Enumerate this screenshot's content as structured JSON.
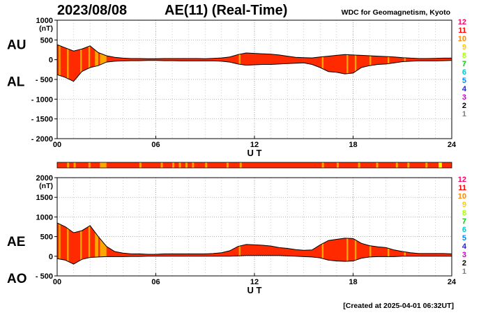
{
  "header": {
    "date": "2023/08/08",
    "title": "AE(11) (Real-Time)",
    "source": "WDC for Geomagnetism, Kyoto"
  },
  "footer": {
    "created": "[Created at 2025-04-01 06:32UT]"
  },
  "colors": {
    "fill_red": "#ff2a00",
    "fill_orange": "#ffa500",
    "fill_yellow": "#ffff00",
    "grid": "#999999",
    "station_count_colors": [
      "#c8c8c8",
      "#7f7f7f",
      "#000000",
      "#cc00cc",
      "#2222cc",
      "#0088ff",
      "#00cccc",
      "#00cc00",
      "#aaff00",
      "#ffcc00",
      "#ff8800",
      "#ff0000",
      "#ff0066"
    ]
  },
  "chart_data": [
    {
      "type": "area",
      "panel": "AU/AL",
      "series": [
        {
          "name": "AU"
        },
        {
          "name": "AL"
        }
      ],
      "units": "(nT)",
      "ylim": [
        -2000,
        1000
      ],
      "yticks": [
        1000,
        500,
        0,
        -500,
        -1000,
        -1500,
        -2000
      ],
      "ytick_labels": [
        "1000",
        "500",
        "0",
        "- 500",
        "- 1000",
        "- 1500",
        "- 2000"
      ],
      "xlim": [
        0,
        24
      ],
      "xticks": [
        0,
        6,
        12,
        18,
        24
      ],
      "xtick_labels": [
        "00",
        "06",
        "12",
        "18",
        "24"
      ],
      "xlabel": "U T",
      "grid": true,
      "hours": [
        0,
        0.5,
        1,
        1.5,
        2,
        2.5,
        3,
        3.5,
        4,
        4.5,
        5,
        5.5,
        6,
        6.5,
        7,
        7.5,
        8,
        8.5,
        9,
        9.5,
        10,
        10.5,
        11,
        11.5,
        12,
        12.5,
        13,
        13.5,
        14,
        14.5,
        15,
        15.5,
        16,
        16.5,
        17,
        17.5,
        18,
        18.5,
        19,
        19.5,
        20,
        20.5,
        21,
        21.5,
        22,
        22.5,
        23,
        23.5,
        24
      ],
      "upper": [
        380,
        300,
        220,
        270,
        350,
        180,
        100,
        60,
        40,
        30,
        30,
        25,
        25,
        30,
        30,
        30,
        30,
        30,
        25,
        35,
        45,
        70,
        130,
        170,
        160,
        150,
        140,
        120,
        90,
        60,
        50,
        45,
        70,
        90,
        110,
        130,
        120,
        110,
        100,
        90,
        80,
        70,
        50,
        40,
        30,
        30,
        35,
        40,
        40
      ],
      "lower": [
        -380,
        -450,
        -550,
        -300,
        -200,
        -150,
        -60,
        -40,
        -30,
        -25,
        -25,
        -20,
        -20,
        -25,
        -25,
        -30,
        -30,
        -30,
        -30,
        -30,
        -40,
        -60,
        -110,
        -140,
        -130,
        -120,
        -120,
        -110,
        -100,
        -90,
        -80,
        -120,
        -200,
        -300,
        -320,
        -360,
        -340,
        -200,
        -150,
        -120,
        -110,
        -80,
        -50,
        -40,
        -30,
        -30,
        -30,
        -25,
        -20
      ],
      "orange_bands": [
        [
          0.1,
          0.2
        ],
        [
          0.6,
          0.7
        ],
        [
          1.4,
          1.5
        ],
        [
          1.9,
          2.0
        ],
        [
          2.3,
          2.5
        ],
        [
          2.6,
          3.0
        ],
        [
          11.05,
          11.15
        ],
        [
          16.1,
          16.2
        ],
        [
          17.6,
          17.7
        ],
        [
          18.1,
          18.2
        ],
        [
          19.0,
          19.1
        ],
        [
          20.1,
          20.2
        ],
        [
          21.1,
          21.2
        ]
      ],
      "right_scale": [
        "12",
        "11",
        "10",
        "9",
        "8",
        "7",
        "6",
        "5",
        "4",
        "3",
        "2",
        "1"
      ],
      "side_labels": [
        "AU",
        "AL"
      ]
    },
    {
      "type": "heatmap",
      "panel": "station count strip",
      "xlim": [
        0,
        24
      ],
      "base_color": "red",
      "orange_bands": [
        [
          0.6,
          0.7
        ],
        [
          1.0,
          1.1
        ],
        [
          1.9,
          2.0
        ],
        [
          2.6,
          3.0
        ],
        [
          5.0,
          5.1
        ],
        [
          6.3,
          6.4
        ],
        [
          7.0,
          7.1
        ],
        [
          7.4,
          7.5
        ],
        [
          7.8,
          7.9
        ],
        [
          8.2,
          8.3
        ],
        [
          9.0,
          9.1
        ],
        [
          10.3,
          10.4
        ],
        [
          11.1,
          11.2
        ],
        [
          16.1,
          16.2
        ],
        [
          17.0,
          17.1
        ],
        [
          18.3,
          18.4
        ],
        [
          19.4,
          19.5
        ],
        [
          20.6,
          20.7
        ],
        [
          21.3,
          21.4
        ],
        [
          22.4,
          22.5
        ]
      ],
      "yellow_bands": [
        [
          23.2,
          23.4
        ]
      ]
    },
    {
      "type": "area",
      "panel": "AE/AO",
      "series": [
        {
          "name": "AE"
        },
        {
          "name": "AO"
        }
      ],
      "units": "(nT)",
      "ylim": [
        -500,
        2000
      ],
      "yticks": [
        2000,
        1500,
        1000,
        500,
        0,
        -500
      ],
      "ytick_labels": [
        "2000",
        "1500",
        "1000",
        "500",
        "0",
        "- 500"
      ],
      "xlim": [
        0,
        24
      ],
      "xticks": [
        0,
        6,
        12,
        18,
        24
      ],
      "xtick_labels": [
        "00",
        "06",
        "12",
        "18",
        "24"
      ],
      "xlabel": "U T",
      "grid": true,
      "hours": [
        0,
        0.5,
        1,
        1.5,
        2,
        2.5,
        3,
        3.5,
        4,
        4.5,
        5,
        5.5,
        6,
        6.5,
        7,
        7.5,
        8,
        8.5,
        9,
        9.5,
        10,
        10.5,
        11,
        11.5,
        12,
        12.5,
        13,
        13.5,
        14,
        14.5,
        15,
        15.5,
        16,
        16.5,
        17,
        17.5,
        18,
        18.5,
        19,
        19.5,
        20,
        20.5,
        21,
        21.5,
        22,
        22.5,
        23,
        23.5,
        24
      ],
      "upper": [
        850,
        750,
        600,
        650,
        780,
        500,
        250,
        120,
        80,
        60,
        60,
        50,
        50,
        60,
        60,
        60,
        60,
        60,
        60,
        70,
        90,
        140,
        250,
        300,
        290,
        280,
        260,
        220,
        200,
        170,
        150,
        160,
        290,
        400,
        430,
        460,
        450,
        330,
        270,
        240,
        220,
        160,
        120,
        90,
        70,
        70,
        70,
        70,
        60
      ],
      "lower": [
        -60,
        -100,
        -200,
        -80,
        -30,
        -20,
        -10,
        -10,
        -10,
        -5,
        -5,
        0,
        0,
        0,
        0,
        0,
        0,
        0,
        0,
        0,
        0,
        0,
        10,
        20,
        20,
        20,
        20,
        20,
        10,
        0,
        -10,
        -20,
        -40,
        -100,
        -120,
        -130,
        -120,
        -50,
        -20,
        -10,
        -10,
        -10,
        0,
        0,
        0,
        0,
        0,
        0,
        0
      ],
      "orange_bands": [
        [
          0.1,
          0.2
        ],
        [
          0.6,
          0.7
        ],
        [
          1.4,
          1.5
        ],
        [
          1.9,
          2.0
        ],
        [
          2.3,
          2.5
        ],
        [
          2.6,
          3.0
        ],
        [
          11.05,
          11.15
        ],
        [
          16.1,
          16.2
        ],
        [
          17.6,
          17.7
        ],
        [
          18.1,
          18.2
        ],
        [
          19.0,
          19.1
        ],
        [
          20.1,
          20.2
        ],
        [
          21.1,
          21.2
        ]
      ],
      "right_scale": [
        "12",
        "11",
        "10",
        "9",
        "8",
        "7",
        "6",
        "5",
        "4",
        "3",
        "2",
        "1"
      ],
      "side_labels": [
        "AE",
        "AO"
      ]
    }
  ]
}
